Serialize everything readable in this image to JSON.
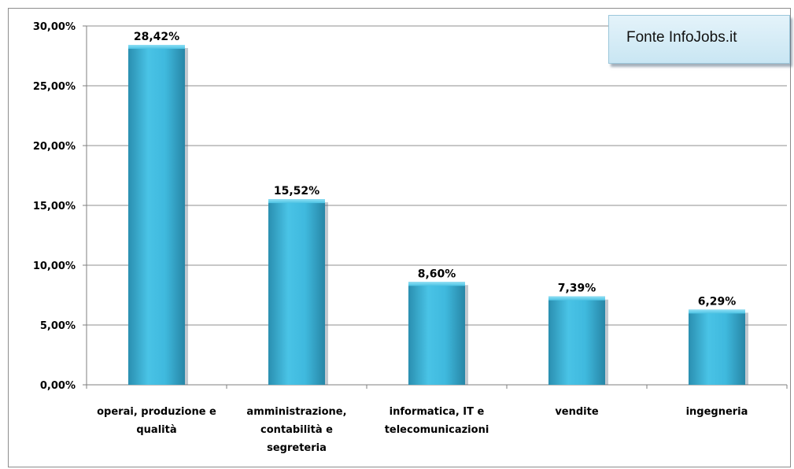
{
  "chart_data": {
    "type": "bar",
    "categories": [
      [
        "operai, produzione e",
        "qualità"
      ],
      [
        "amministrazione,",
        "contabilità e",
        "segreteria"
      ],
      [
        "informatica, IT e",
        "telecomunicazioni"
      ],
      [
        "vendite"
      ],
      [
        "ingegneria"
      ]
    ],
    "values": [
      28.42,
      15.52,
      8.6,
      7.39,
      6.29
    ],
    "data_labels": [
      "28,42%",
      "15,52%",
      "8,60%",
      "7,39%",
      "6,29%"
    ],
    "y_ticks": [
      0,
      5,
      10,
      15,
      20,
      25,
      30
    ],
    "y_tick_labels": [
      "0,00%",
      "5,00%",
      "10,00%",
      "15,00%",
      "20,00%",
      "25,00%",
      "30,00%"
    ],
    "ylim": [
      0,
      30
    ],
    "grid": true,
    "bar_color": "#3bb8dc",
    "title": "",
    "xlabel": "",
    "ylabel": ""
  },
  "source_note": "Fonte InfoJobs.it"
}
